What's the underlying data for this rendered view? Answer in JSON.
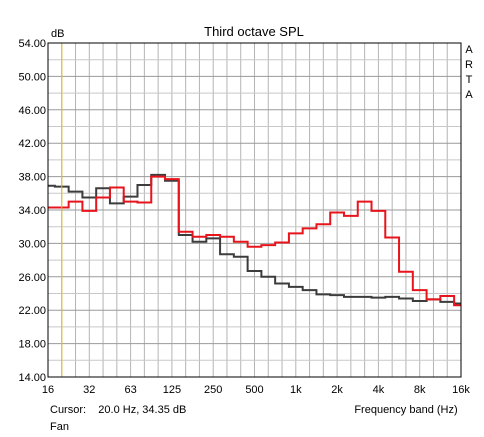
{
  "chart_data": {
    "type": "line",
    "title": "Third octave SPL",
    "ylabel": "dB",
    "xlabel": "Frequency band (Hz)",
    "brand": "ARTA",
    "cursor_readout": "Cursor:    20.0 Hz, 34.35 dB",
    "footer_label": "Fan",
    "ylim": [
      14,
      54
    ],
    "yticks": [
      "14.00",
      "18.00",
      "22.00",
      "26.00",
      "30.00",
      "34.00",
      "38.00",
      "42.00",
      "46.00",
      "50.00",
      "54.00"
    ],
    "xlim_band_index": [
      0,
      30
    ],
    "xtick_labels": [
      "16",
      "32",
      "63",
      "125",
      "250",
      "500",
      "1k",
      "2k",
      "4k",
      "8k",
      "16k"
    ],
    "bands": [
      "16",
      "20",
      "25",
      "31.5",
      "40",
      "50",
      "63",
      "80",
      "100",
      "125",
      "160",
      "200",
      "250",
      "315",
      "400",
      "500",
      "630",
      "800",
      "1k",
      "1.25k",
      "1.6k",
      "2k",
      "2.5k",
      "3.15k",
      "4k",
      "5k",
      "6.3k",
      "8k",
      "10k",
      "12.5k",
      "16k",
      "20k"
    ],
    "cursor_band": "20",
    "grid": true,
    "series": [
      {
        "color": "#3c3c3c",
        "values": [
          36.9,
          36.8,
          36.2,
          35.5,
          36.6,
          34.8,
          35.6,
          37.0,
          38.2,
          37.5,
          31.0,
          30.2,
          30.6,
          28.7,
          28.4,
          26.7,
          26.0,
          25.2,
          24.8,
          24.4,
          23.9,
          23.8,
          23.6,
          23.6,
          23.5,
          23.6,
          23.4,
          23.1,
          23.3,
          23.0,
          22.8,
          22.8
        ]
      },
      {
        "color": "#e8141c",
        "values": [
          34.3,
          34.3,
          35.0,
          33.9,
          35.5,
          36.7,
          35.0,
          34.9,
          38.0,
          37.7,
          31.4,
          30.8,
          31.0,
          30.8,
          30.2,
          29.6,
          29.8,
          30.1,
          31.2,
          31.8,
          32.3,
          33.7,
          33.3,
          35.0,
          33.9,
          30.7,
          26.6,
          24.4,
          23.3,
          23.7,
          22.6,
          22.6
        ]
      }
    ]
  }
}
